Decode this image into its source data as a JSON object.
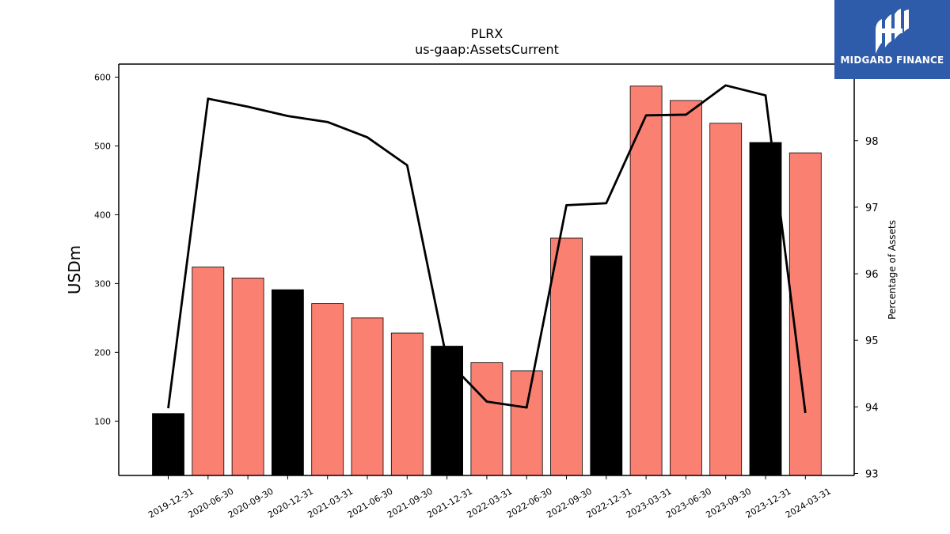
{
  "chart_data": {
    "type": "bar",
    "title": "PLRX",
    "subtitle": "us-gaap:AssetsCurrent",
    "ylabel": "USDm",
    "y2label": "Percentage of Assets",
    "categories": [
      "2019-12-31",
      "2020-06-30",
      "2020-09-30",
      "2020-12-31",
      "2021-03-31",
      "2021-06-30",
      "2021-09-30",
      "2021-12-31",
      "2022-03-31",
      "2022-06-30",
      "2022-09-30",
      "2022-12-31",
      "2023-03-31",
      "2023-06-30",
      "2023-09-30",
      "2023-12-31",
      "2024-03-31"
    ],
    "series": [
      {
        "type": "bar",
        "values": [
          111,
          324,
          308,
          291,
          271,
          250,
          228,
          209,
          185,
          173,
          366,
          340,
          587,
          566,
          533,
          505,
          490
        ],
        "colors": [
          "#000000",
          "#fa8072",
          "#fa8072",
          "#000000",
          "#fa8072",
          "#fa8072",
          "#fa8072",
          "#000000",
          "#fa8072",
          "#fa8072",
          "#fa8072",
          "#000000",
          "#fa8072",
          "#fa8072",
          "#fa8072",
          "#000000",
          "#fa8072"
        ]
      },
      {
        "type": "line",
        "axis": "right",
        "values": [
          93.98,
          98.63,
          98.51,
          98.37,
          98.28,
          98.05,
          97.63,
          94.7,
          94.08,
          93.99,
          97.03,
          97.06,
          98.38,
          98.39,
          98.83,
          98.68,
          93.91
        ]
      }
    ],
    "ylim": [
      21,
      619
    ],
    "yticks": [
      100,
      200,
      300,
      400,
      500,
      600
    ],
    "y2lim": [
      92.97,
      99.15
    ],
    "y2ticks": [
      93,
      94,
      95,
      96,
      97,
      98
    ],
    "colors": {
      "annual": "#000000",
      "quarter": "#fa8072",
      "line": "#000000"
    },
    "grid": false
  },
  "logo": {
    "text": "MIDGARD FINANCE"
  }
}
